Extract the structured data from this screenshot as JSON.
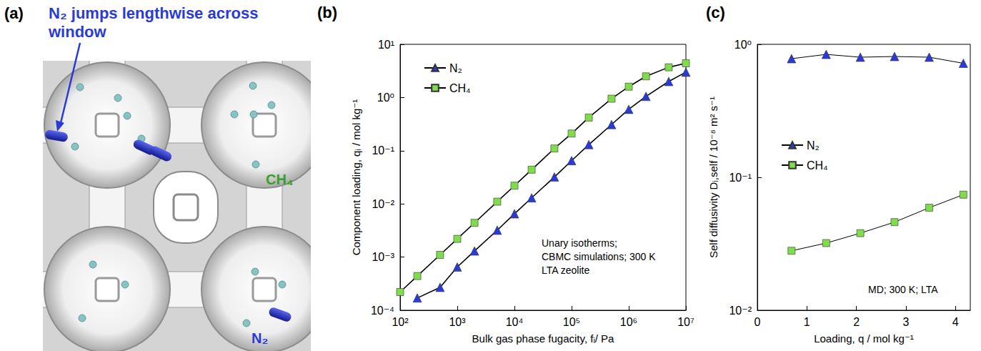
{
  "diagram": {
    "panel_label": "(a)",
    "annotation": "N₂ jumps lengthwise across window",
    "molecule_labels": [
      "CH₄",
      "N₂"
    ]
  },
  "chart_data": [
    {
      "panel_label": "(b)",
      "type": "line",
      "log": true,
      "grid": false,
      "legend": "upper left",
      "xlabel": "Bulk gas phase fugacity, fᵢ/ Pa",
      "ylabel": "Component loading, qᵢ / mol kg⁻¹",
      "annotation": "Unary isotherms;\nCBMC simulations; 300 K\nLTA zeolite",
      "x": [
        100,
        200,
        500,
        1000,
        2000,
        5000,
        10000,
        20000,
        50000,
        100000,
        200000,
        500000,
        1000000,
        2000000,
        5000000,
        10000000
      ],
      "series": [
        {
          "name": "N₂",
          "color": "#2a3bd4",
          "marker": "triangle",
          "values": [
            null,
            0.00017,
            0.00027,
            0.00065,
            0.0013,
            0.0032,
            0.0065,
            0.013,
            0.032,
            0.065,
            0.13,
            0.31,
            0.6,
            1.05,
            2.0,
            3.0
          ]
        },
        {
          "name": "CH₄",
          "color": "#7fdd4c",
          "marker": "square",
          "values": [
            0.00022,
            0.00044,
            0.0011,
            0.0022,
            0.0044,
            0.011,
            0.022,
            0.044,
            0.11,
            0.21,
            0.42,
            0.95,
            1.6,
            2.5,
            3.7,
            4.4
          ]
        }
      ],
      "xlim": [
        100,
        10000000
      ],
      "ylim": [
        0.0001,
        10
      ],
      "xticks": [
        {
          "value": 100,
          "label": "10²"
        },
        {
          "value": 1000,
          "label": "10³"
        },
        {
          "value": 10000,
          "label": "10⁴"
        },
        {
          "value": 100000,
          "label": "10⁵"
        },
        {
          "value": 1000000,
          "label": "10⁶"
        },
        {
          "value": 10000000,
          "label": "10⁷"
        }
      ],
      "yticks": [
        {
          "value": 0.0001,
          "label": "10⁻⁴"
        },
        {
          "value": 0.001,
          "label": "10⁻³"
        },
        {
          "value": 0.01,
          "label": "10⁻²"
        },
        {
          "value": 0.1,
          "label": "10⁻¹"
        },
        {
          "value": 1,
          "label": "10⁰"
        },
        {
          "value": 10,
          "label": "10¹"
        }
      ]
    },
    {
      "panel_label": "(c)",
      "type": "line",
      "log": "y",
      "grid": false,
      "legend": "left",
      "xlabel": "Loading, q / mol kg⁻¹",
      "ylabel": "Self diffusivity Dᵢ,self / 10⁻⁸ m² s⁻¹",
      "annotation": "MD; 300 K; LTA",
      "x": [
        0.69,
        1.39,
        2.08,
        2.77,
        3.47,
        4.16
      ],
      "series": [
        {
          "name": "N₂",
          "color": "#2a3bd4",
          "marker": "triangle",
          "values": [
            0.78,
            0.84,
            0.8,
            0.81,
            0.8,
            0.72
          ]
        },
        {
          "name": "CH₄",
          "color": "#7fdd4c",
          "marker": "square",
          "values": [
            0.028,
            0.032,
            0.038,
            0.046,
            0.059,
            0.074
          ]
        }
      ],
      "xlim": [
        0,
        4.3
      ],
      "ylim": [
        0.01,
        1
      ],
      "xticks": [
        0,
        1,
        2,
        3,
        4
      ],
      "yticks": [
        {
          "value": 0.01,
          "label": "10⁻²"
        },
        {
          "value": 0.1,
          "label": "10⁻¹"
        },
        {
          "value": 1,
          "label": "10⁰"
        }
      ]
    }
  ]
}
